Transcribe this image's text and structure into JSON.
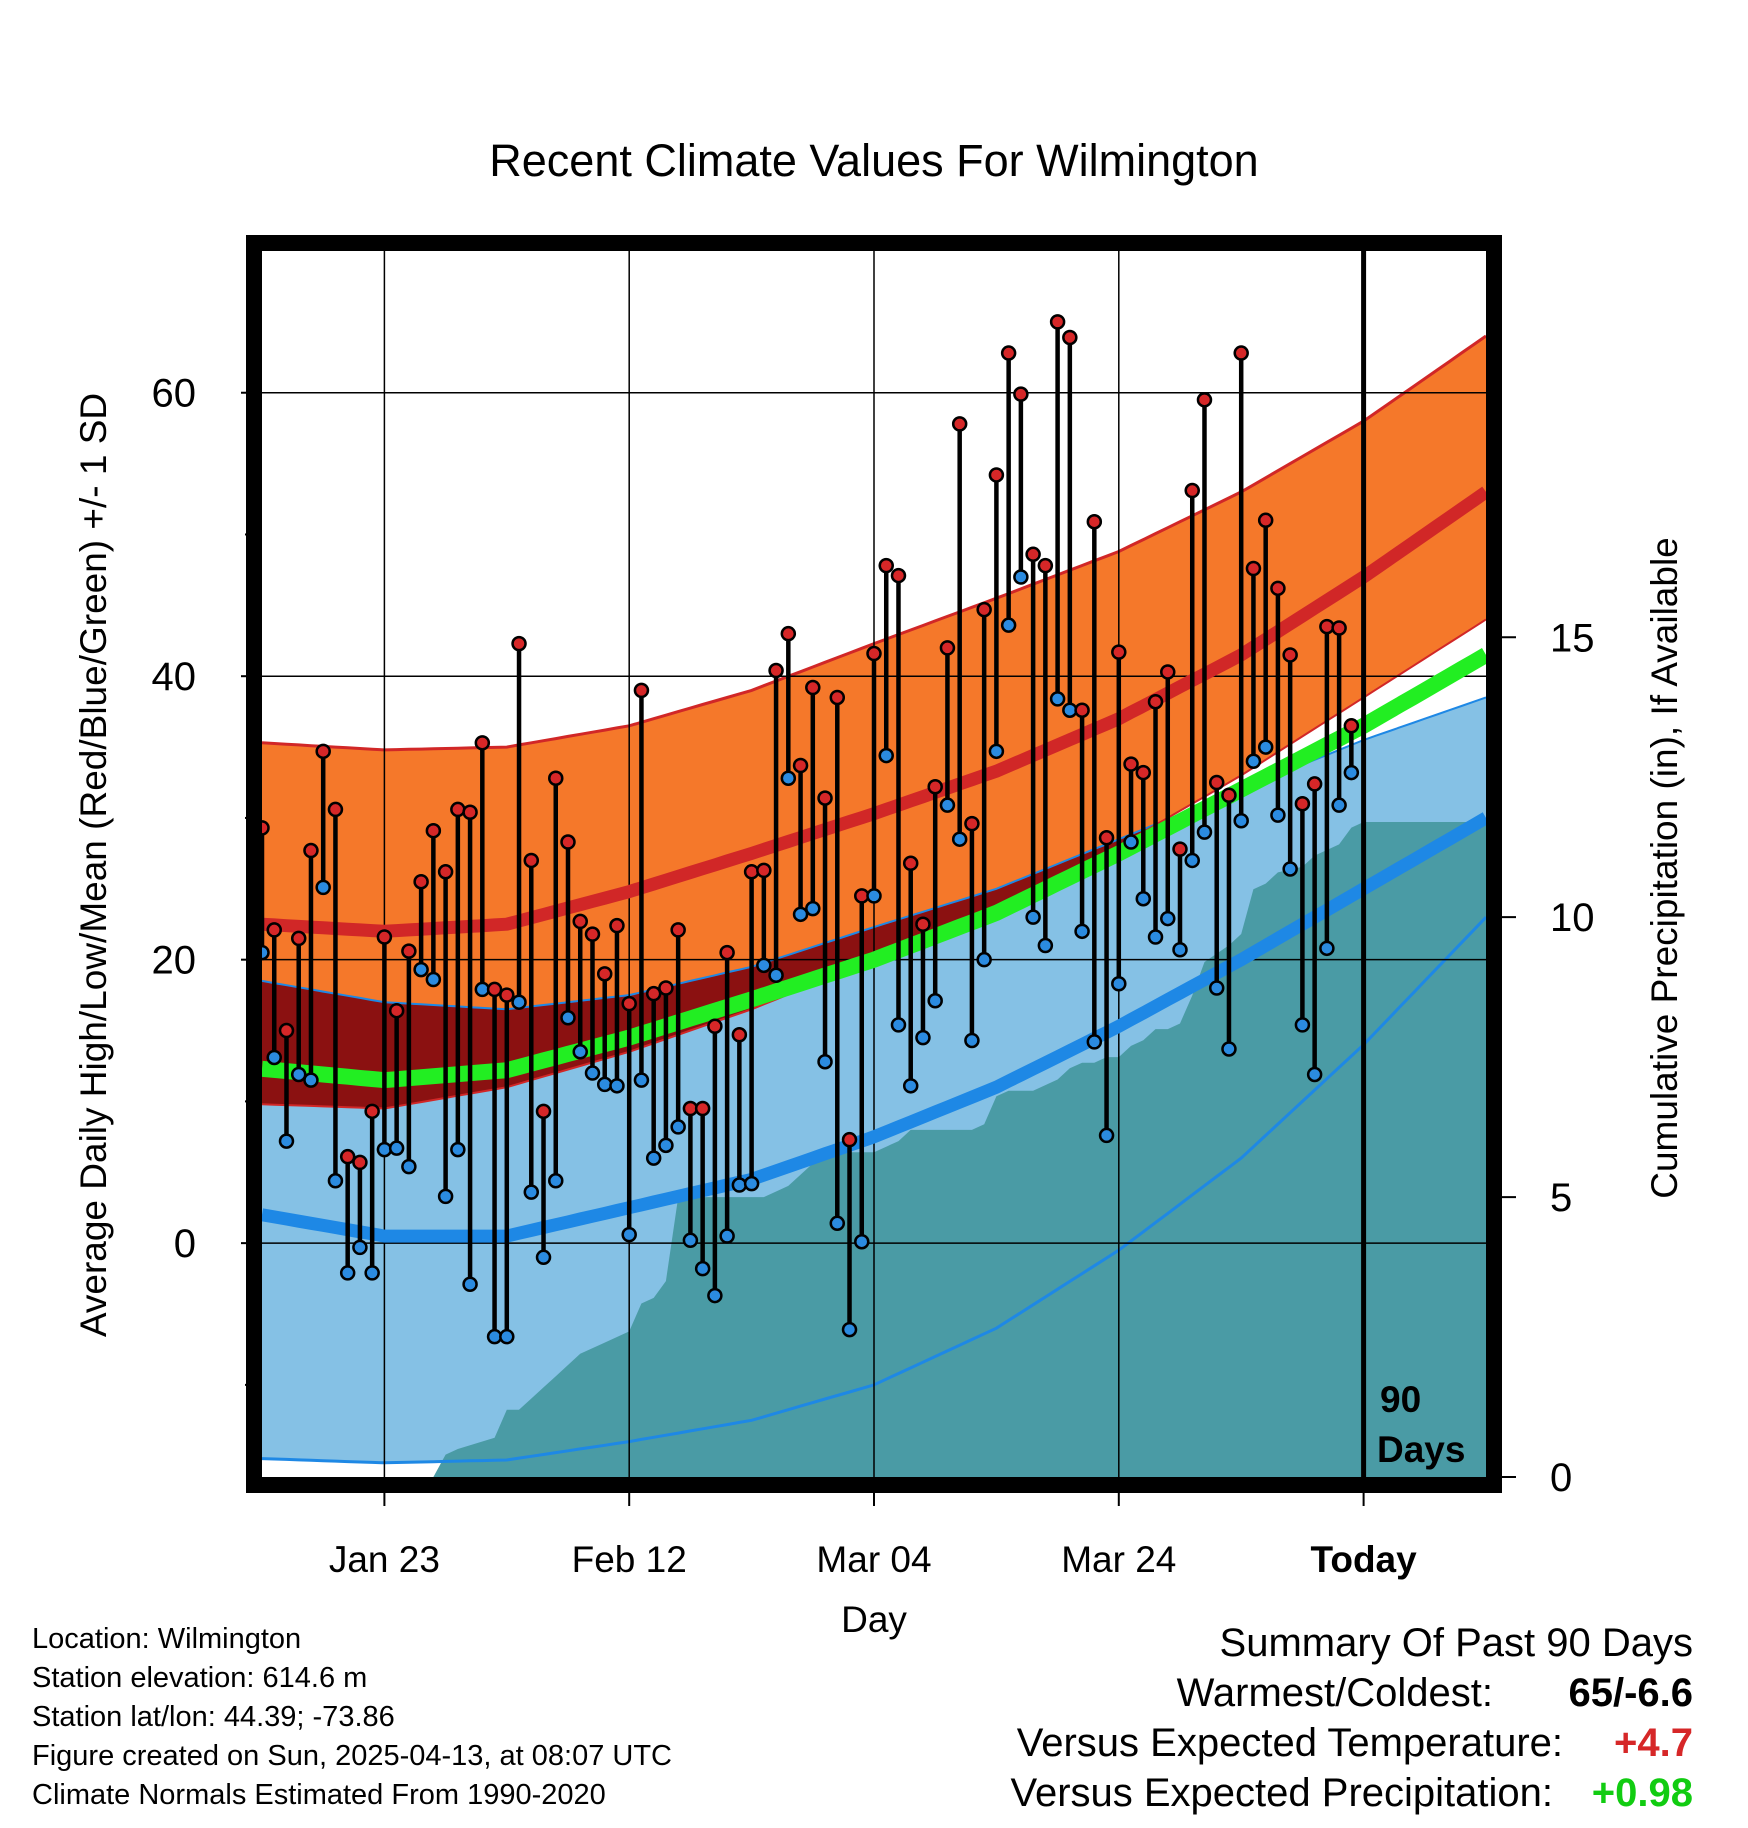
{
  "chart_data": {
    "type": "line",
    "title": "Recent Climate Values For Wilmington",
    "xlabel": "Day",
    "ylabel": "Average Daily High/Low/Mean (Red/Blue/Green) +/- 1 SD",
    "y2label": "Cumulative Precipitation (in), If Available",
    "xlim": [
      -10,
      90
    ],
    "ylim": [
      -16.5,
      70
    ],
    "y2lim": [
      0,
      21.9
    ],
    "x_ticks": [
      {
        "day": 0,
        "label": "Jan 23"
      },
      {
        "day": 20,
        "label": "Feb 12"
      },
      {
        "day": 40,
        "label": "Mar 04"
      },
      {
        "day": 60,
        "label": "Mar 24"
      },
      {
        "day": 80,
        "label": "Today"
      }
    ],
    "y_ticks": [
      {
        "value": 0,
        "label": "0"
      },
      {
        "value": 20,
        "label": "20"
      },
      {
        "value": 40,
        "label": "40"
      },
      {
        "value": 60,
        "label": "60"
      }
    ],
    "y_minor_ticks": [
      -10,
      10,
      30,
      50
    ],
    "y2_ticks": [
      {
        "value": 0,
        "label": "0"
      },
      {
        "value": 5,
        "label": "5"
      },
      {
        "value": 10,
        "label": "10"
      },
      {
        "value": 15,
        "label": "15"
      }
    ],
    "today_marker": {
      "day": 80,
      "label_line1": "90",
      "label_line2": "Days"
    },
    "normals": {
      "days": [
        -10,
        0,
        10,
        20,
        30,
        40,
        50,
        60,
        70,
        80,
        90
      ],
      "high_mean": [
        22.5,
        22.0,
        22.5,
        24.8,
        27.5,
        30.3,
        33.3,
        37.0,
        41.5,
        47.0,
        53.0
      ],
      "high_upper": [
        35.3,
        34.8,
        35.0,
        36.5,
        39.0,
        42.3,
        45.5,
        48.8,
        53.0,
        58.0,
        64.0
      ],
      "high_lower": [
        9.8,
        9.5,
        11.0,
        13.5,
        16.5,
        20.0,
        23.5,
        28.0,
        33.0,
        38.5,
        44.0
      ],
      "low_mean": [
        2.0,
        0.5,
        0.5,
        2.5,
        4.5,
        7.5,
        11.0,
        15.3,
        20.0,
        25.0,
        30.0
      ],
      "low_upper": [
        18.5,
        17.0,
        16.5,
        17.5,
        19.5,
        22.3,
        25.0,
        28.5,
        32.0,
        35.5,
        38.5
      ],
      "low_lower": [
        -15.2,
        -15.5,
        -15.3,
        -14.0,
        -12.5,
        -10.0,
        -6.0,
        -0.5,
        6.0,
        14.0,
        23.0
      ],
      "avg_mean": [
        12.3,
        11.5,
        12.2,
        14.5,
        17.2,
        20.0,
        23.3,
        27.5,
        32.0,
        36.5,
        41.5
      ]
    },
    "observed": {
      "high": [
        29.3,
        22.1,
        15.0,
        21.5,
        27.7,
        34.7,
        30.6,
        6.1,
        5.7,
        9.3,
        21.6,
        16.4,
        20.6,
        25.5,
        29.1,
        26.2,
        30.6,
        30.4,
        35.3,
        17.9,
        17.5,
        42.3,
        27.0,
        9.3,
        32.8,
        28.3,
        22.7,
        21.8,
        19.0,
        22.4,
        16.9,
        39.0,
        17.6,
        18.0,
        22.1,
        9.5,
        9.5,
        15.3,
        20.5,
        14.7,
        26.2,
        26.3,
        40.4,
        43.0,
        33.7,
        39.2,
        31.4,
        38.5,
        7.3,
        24.5,
        41.6,
        47.8,
        47.1,
        26.8,
        22.5,
        32.2,
        42.0,
        57.8,
        29.6,
        44.7,
        54.2,
        62.8,
        59.9,
        48.6,
        47.8,
        65.0,
        63.9,
        37.6,
        50.9,
        28.6,
        41.7,
        33.8,
        33.2,
        38.2,
        40.3,
        27.8,
        53.1,
        59.5,
        32.5,
        31.6,
        62.8,
        47.6,
        51.0,
        46.2,
        41.5,
        31.0,
        32.4,
        43.5,
        43.4,
        36.5
      ],
      "low": [
        20.5,
        13.1,
        7.2,
        11.9,
        11.5,
        25.1,
        4.4,
        -2.1,
        -0.3,
        -2.1,
        6.6,
        6.7,
        5.4,
        19.3,
        18.6,
        3.3,
        6.6,
        -2.9,
        17.9,
        -6.6,
        -6.6,
        17.0,
        3.6,
        -1.0,
        4.4,
        15.9,
        13.5,
        12.0,
        11.2,
        11.1,
        0.6,
        11.5,
        6.0,
        6.9,
        8.2,
        0.2,
        -1.8,
        -3.7,
        0.5,
        4.1,
        4.2,
        19.6,
        18.9,
        32.8,
        23.2,
        23.6,
        12.8,
        1.4,
        -6.1,
        0.1,
        24.5,
        34.4,
        15.4,
        11.1,
        14.5,
        17.1,
        30.9,
        28.5,
        14.3,
        20.0,
        34.7,
        43.6,
        47.0,
        23.0,
        21.0,
        38.4,
        37.6,
        22.0,
        14.2,
        7.6,
        18.3,
        28.3,
        24.3,
        21.6,
        22.9,
        20.7,
        27.0,
        29.0,
        18.0,
        13.7,
        29.8,
        34.0,
        35.0,
        30.2,
        26.4,
        15.4,
        11.9,
        20.8,
        30.9,
        33.2
      ]
    },
    "precipitation": {
      "days": [
        -10,
        4,
        5,
        6,
        9,
        10,
        11,
        13,
        14,
        16,
        18,
        20,
        21,
        22,
        23,
        24,
        29,
        30,
        31,
        32,
        33,
        35,
        36,
        38,
        40,
        41,
        42,
        43,
        44,
        46,
        47,
        48,
        49,
        50,
        51,
        52,
        53,
        55,
        56,
        57,
        58,
        59,
        60,
        61,
        62,
        63,
        64,
        65,
        66,
        67,
        69,
        70,
        71,
        72,
        73,
        75,
        76,
        77,
        78,
        79,
        80,
        90
      ],
      "values": [
        0,
        0,
        0.4,
        0.5,
        0.7,
        1.2,
        1.2,
        1.6,
        1.8,
        2.2,
        2.4,
        2.6,
        3.1,
        3.2,
        3.5,
        5.0,
        5.0,
        5.0,
        5.0,
        5.1,
        5.2,
        5.6,
        5.7,
        5.8,
        5.8,
        5.9,
        6.0,
        6.2,
        6.2,
        6.2,
        6.2,
        6.2,
        6.3,
        6.8,
        6.9,
        6.9,
        6.9,
        7.1,
        7.3,
        7.4,
        7.4,
        7.5,
        7.5,
        7.7,
        7.8,
        8.0,
        8.0,
        8.1,
        8.6,
        9.2,
        9.5,
        9.7,
        10.5,
        10.6,
        10.8,
        10.9,
        11.1,
        11.2,
        11.3,
        11.6,
        11.7,
        11.7
      ]
    }
  },
  "colors": {
    "high": "#d62728",
    "high_band": "#f5782a",
    "high_line": "#d12727",
    "low_band": "#85c1e5",
    "low_line": "#1e88e5",
    "overlap": "#8b1111",
    "avg": "#22ee22",
    "precip": "#4a9ba5",
    "low_dot": "#2b8be0"
  },
  "info": {
    "location": "Location: Wilmington",
    "elevation": "Station elevation: 614.6 m",
    "latlon": "Station lat/lon: 44.39; -73.86",
    "created": "Figure created on Sun, 2025-04-13, at 08:07 UTC",
    "normals": "Climate Normals Estimated From 1990-2020"
  },
  "summary": {
    "title": "Summary Of Past 90 Days",
    "warm_cold_label": "Warmest/Coldest:",
    "warm_cold_value": "65/-6.6",
    "temp_label": "Versus Expected Temperature:",
    "temp_value": "+4.7",
    "precip_label": "Versus Expected Precipitation:",
    "precip_value": "+0.98"
  }
}
